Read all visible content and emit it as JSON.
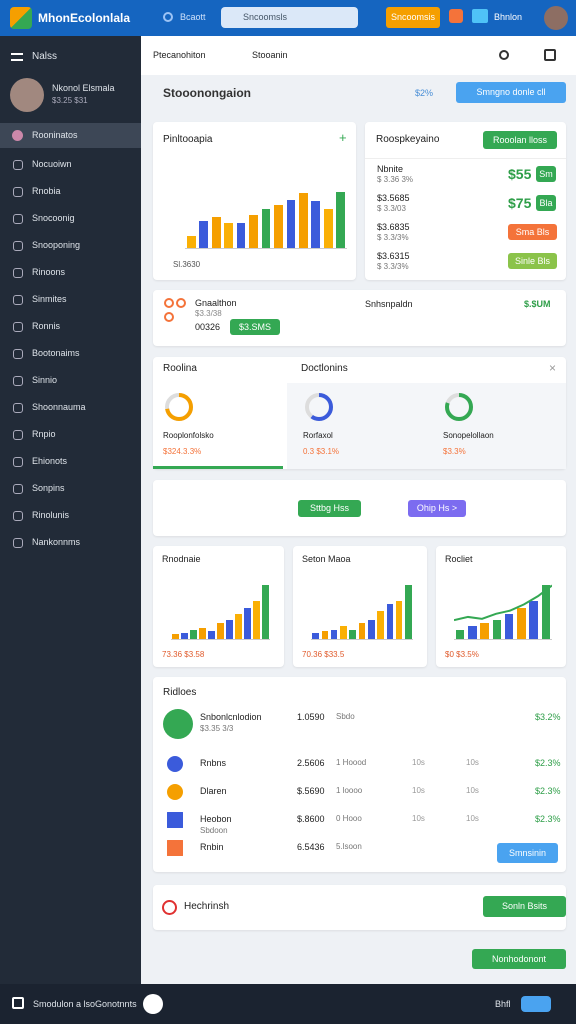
{
  "topbar": {
    "logo": "MhonEcolonlala",
    "search_label": "Bcaott",
    "search_placeholder": "Sncoomsls",
    "button": "Sncoomsis",
    "user": "Bhnlon"
  },
  "sidebar": {
    "menu_label": "Nalss",
    "profile_name": "Nkonol Elsmala",
    "profile_sub": "$3.25 $31",
    "active": "Rooninatos",
    "items": [
      "Nocuoiwn",
      "Rnobia",
      "Snocoonig",
      "Snooponing",
      "Rinoons",
      "Sinmites",
      "Ronnis",
      "Bootonaims",
      "Sinnio",
      "Shoonnauma",
      "Rnpio",
      "Ehionots",
      "Sonpins",
      "Rinolunis",
      "Nankonnms"
    ]
  },
  "subheader": {
    "tab1": "Ptecanohiton",
    "tab2": "Stooanin"
  },
  "page": {
    "title": "Stooonongaion",
    "link": "$2%",
    "button": "Smngno donle cll"
  },
  "overview": {
    "title": "Pinltooapia",
    "plus": "+",
    "footer": "Sl.3630",
    "ylim": [
      0,
      100
    ],
    "values": [
      15,
      35,
      40,
      32,
      32,
      42,
      50,
      55,
      62,
      70,
      60,
      50,
      72
    ],
    "colors": [
      "#fab005",
      "#3b5bdb",
      "#f59f00",
      "#fab005",
      "#3b5bdb",
      "#f59f00",
      "#34a853",
      "#f59f00",
      "#3b5bdb",
      "#f59f00",
      "#3b5bdb",
      "#fab005",
      "#34a853"
    ]
  },
  "summary": {
    "title": "Roospkeyaino",
    "button": "Rooolan lloss",
    "rows": [
      {
        "name": "Nbnite",
        "sub": "$ 3.36 3%",
        "value": "$55",
        "tag": "Sm"
      },
      {
        "name": "$3.5685",
        "sub": "$ 3.3/03",
        "value": "$75",
        "tag": "Bla"
      },
      {
        "name": "$3.6835",
        "sub": "$ 3.3/3%",
        "value": "",
        "tag": "Sma Bls"
      },
      {
        "name": "$3.6315",
        "sub": "$ 3.3/3%",
        "value": "",
        "tag": "Sinle Bls"
      }
    ]
  },
  "strip": {
    "title": "Gnaalthon",
    "sub": "$3.3/38",
    "code": "00326",
    "button": "$3.SMS",
    "center": "Snhsnpaldn",
    "value": "$.$UM"
  },
  "panels": {
    "title1": "Roolina",
    "title2": "Doctlonins",
    "close": "×",
    "items": [
      {
        "label": "Rooplonfolsko",
        "sub": "$324.3.3%",
        "value": 72
      },
      {
        "label": "Rorfaxol",
        "sub": "0.3 $3.1%",
        "value": 60
      },
      {
        "label": "Sonopelollaon",
        "sub": "$3.3%",
        "value": 80
      }
    ]
  },
  "actions": {
    "primary": "Sttbg Hss",
    "secondary": "Ohip Hs >"
  },
  "minis": [
    {
      "title": "Rnodnaie",
      "footer": "73.36 $3.58",
      "ylim": [
        0,
        100
      ],
      "values": [
        8,
        10,
        15,
        18,
        12,
        25,
        30,
        40,
        50,
        60,
        85
      ],
      "colors": [
        "#f59f00",
        "#3b5bdb",
        "#34a853",
        "#f59f00",
        "#3b5bdb",
        "#f59f00",
        "#3b5bdb",
        "#fab005",
        "#3b5bdb",
        "#fab005",
        "#34a853"
      ],
      "line": null
    },
    {
      "title": "Seton Maoa",
      "footer": "70.36 $33.5",
      "ylim": [
        0,
        100
      ],
      "values": [
        10,
        12,
        15,
        20,
        15,
        25,
        30,
        45,
        55,
        60,
        85
      ],
      "colors": [
        "#3b5bdb",
        "#f59f00",
        "#3b5bdb",
        "#fab005",
        "#34a853",
        "#f59f00",
        "#3b5bdb",
        "#fab005",
        "#3b5bdb",
        "#fab005",
        "#34a853"
      ],
      "line": null
    },
    {
      "title": "Rocliet",
      "footer": "$0 $3.5%",
      "ylim": [
        0,
        100
      ],
      "values": [
        15,
        20,
        25,
        30,
        40,
        50,
        60,
        85
      ],
      "colors": [
        "#34a853",
        "#3b5bdb",
        "#f59f00",
        "#34a853",
        "#3b5bdb",
        "#f59f00",
        "#3b5bdb",
        "#34a853"
      ],
      "line": [
        30,
        35,
        32,
        40,
        45,
        55,
        68,
        85
      ]
    }
  ],
  "list": {
    "title": "Ridloes",
    "button": "Smnsinin",
    "rows": [
      {
        "name": "Snbonlcnlodion",
        "sub": "$3.35 3/3",
        "amount": "1.0590",
        "note": "Sbdo",
        "c1": "",
        "c2": "",
        "value": "$3.2%"
      },
      {
        "name": "Rnbns",
        "sub": "",
        "amount": "2.5606",
        "note": "1 Hoood",
        "c1": "10s",
        "c2": "10s",
        "value": "$2.3%"
      },
      {
        "name": "Dlaren",
        "sub": "",
        "amount": "$.5690",
        "note": "1 loooo",
        "c1": "10s",
        "c2": "10s",
        "value": "$2.3%"
      },
      {
        "name": "Heobon",
        "sub": "Sbdoon",
        "amount": "$.8600",
        "note": "0 Hooo",
        "c1": "10s",
        "c2": "10s",
        "value": "$2.3%"
      },
      {
        "name": "Rnbin",
        "sub": "",
        "amount": "6.5436",
        "note": "5.lsoon",
        "c1": "",
        "c2": "",
        "value": ""
      }
    ]
  },
  "alert": {
    "title": "Hechrinsh",
    "button": "Sonln Bsits",
    "footer_button": "Nonhodonont"
  },
  "bottombar": {
    "text": "Smodulon a lsoGonotnnts",
    "right": "Bhfl"
  }
}
